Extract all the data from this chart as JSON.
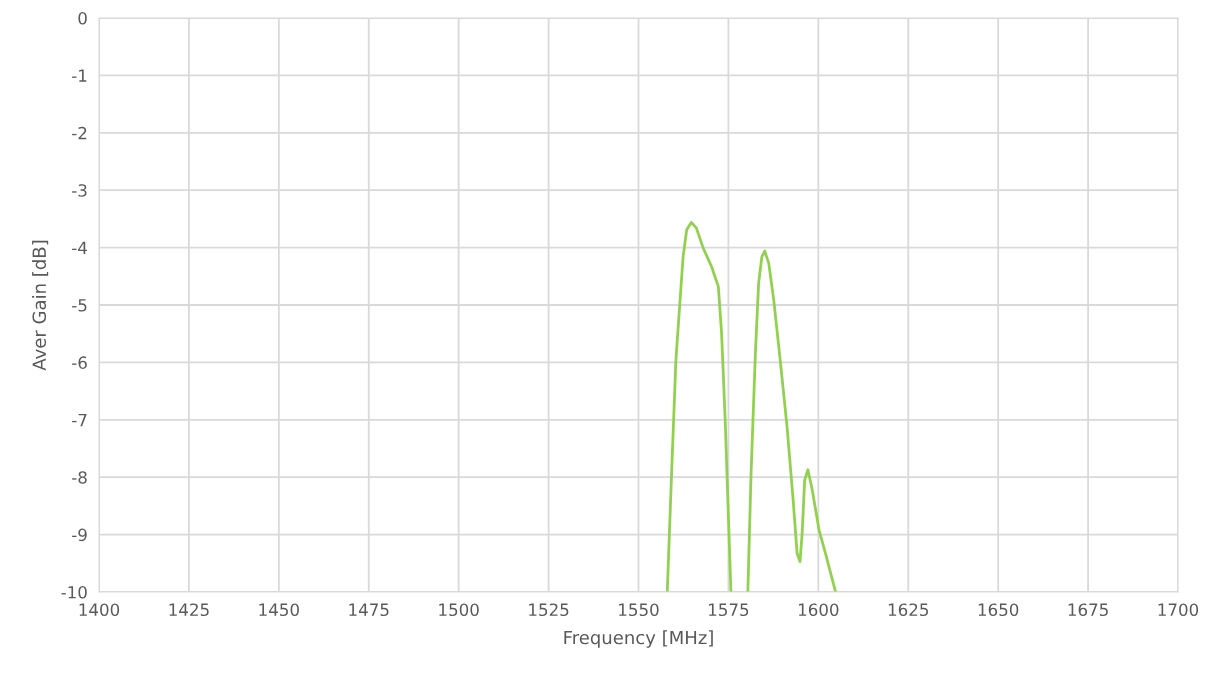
{
  "chart_data": {
    "type": "line",
    "xlabel": "Frequency [MHz]",
    "ylabel": "Aver Gain [dB]",
    "xlim": [
      1400,
      1700
    ],
    "xticks": [
      1400,
      1425,
      1450,
      1475,
      1500,
      1525,
      1550,
      1575,
      1600,
      1625,
      1650,
      1675,
      1700
    ],
    "ylim": [
      -10,
      0
    ],
    "yticks": [
      -10,
      -9,
      -8,
      -7,
      -6,
      -5,
      -4,
      -3,
      -2,
      -1,
      0
    ],
    "grid": true,
    "marker": "none",
    "line_style": "solid",
    "series": [
      {
        "color": "#92d050",
        "x": [
          1558.0,
          1559.2,
          1560.4,
          1561.5,
          1562.4,
          1563.4,
          1564.7,
          1566.1,
          1568.0,
          1570.3,
          1572.2,
          1573.1,
          1574.1,
          1575.0,
          1575.7,
          1578.0,
          1580.4,
          1581.3,
          1582.5,
          1583.4,
          1584.3,
          1585.1,
          1586.2,
          1587.6,
          1589.4,
          1591.3,
          1593.0,
          1594.1,
          1594.9,
          1595.5,
          1596.2,
          1597.1,
          1598.3,
          1600.2,
          1602.0,
          1604.8
        ],
        "values": [
          -10,
          -7.93,
          -5.96,
          -4.97,
          -4.16,
          -3.69,
          -3.56,
          -3.66,
          -4.01,
          -4.33,
          -4.68,
          -5.49,
          -7.0,
          -8.69,
          -10,
          null,
          -10,
          -7.93,
          -5.84,
          -4.62,
          -4.16,
          -4.06,
          -4.27,
          -4.91,
          -5.96,
          -7.12,
          -8.4,
          -9.33,
          -9.47,
          -8.98,
          -8.05,
          -7.87,
          -8.22,
          -8.92,
          -9.33,
          -10
        ]
      }
    ]
  }
}
